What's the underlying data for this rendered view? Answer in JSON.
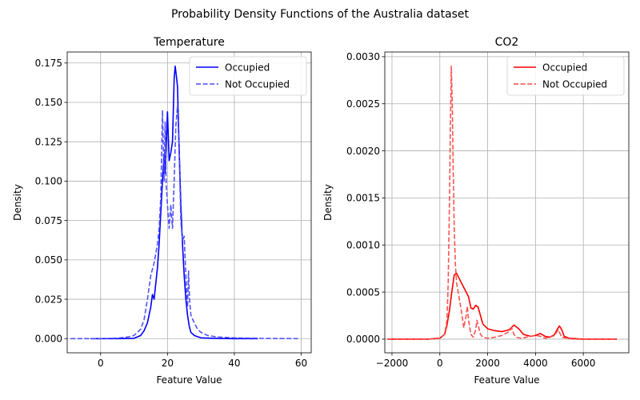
{
  "figure": {
    "suptitle": "Probability Density Functions of the Australia dataset"
  },
  "chart_data": [
    {
      "type": "line",
      "title": "Temperature",
      "xlabel": "Feature Value",
      "ylabel": "Density",
      "xlim": [
        -10,
        63
      ],
      "ylim": [
        -0.009,
        0.182
      ],
      "xticks": [
        0,
        20,
        40,
        60
      ],
      "yticks": [
        0.0,
        0.025,
        0.05,
        0.075,
        0.1,
        0.125,
        0.15,
        0.175
      ],
      "ytick_labels": [
        "0.000",
        "0.025",
        "0.050",
        "0.075",
        "0.100",
        "0.125",
        "0.150",
        "0.175"
      ],
      "xtick_labels": [
        "0",
        "20",
        "40",
        "60"
      ],
      "grid": true,
      "legend": "top-right",
      "series": [
        {
          "name": "Occupied",
          "color": "#0000ff",
          "dash": "solid",
          "x": [
            -3,
            5,
            10,
            12,
            13,
            14,
            15,
            15.5,
            16,
            16.5,
            17,
            17.5,
            18,
            18.5,
            19,
            19.3,
            19.6,
            20,
            20.5,
            21,
            21.5,
            22,
            22.3,
            22.6,
            23,
            23.5,
            24,
            24.5,
            25,
            25.5,
            26,
            26.5,
            27,
            28,
            30,
            35,
            40,
            47
          ],
          "y": [
            0,
            0,
            0.0002,
            0.002,
            0.005,
            0.01,
            0.02,
            0.028,
            0.025,
            0.035,
            0.045,
            0.06,
            0.08,
            0.1,
            0.117,
            0.105,
            0.12,
            0.144,
            0.113,
            0.118,
            0.125,
            0.165,
            0.173,
            0.168,
            0.16,
            0.12,
            0.085,
            0.06,
            0.04,
            0.025,
            0.015,
            0.008,
            0.004,
            0.002,
            0.0005,
            0.0001,
            0,
            0
          ]
        },
        {
          "name": "Not Occupied",
          "color": "#4a4aff",
          "dash": "dashed",
          "x": [
            -9,
            0,
            5,
            8,
            10,
            12,
            13,
            14,
            15,
            16,
            17,
            17.5,
            18,
            18.5,
            19,
            19.3,
            19.6,
            20,
            20.5,
            21,
            21.5,
            22,
            22.5,
            23,
            23.5,
            24,
            24.5,
            25,
            25.5,
            26,
            26.3,
            26.6,
            27,
            28,
            29,
            30,
            32,
            35,
            40,
            50,
            59
          ],
          "y": [
            0,
            0,
            0.0003,
            0.001,
            0.002,
            0.006,
            0.012,
            0.025,
            0.04,
            0.048,
            0.06,
            0.07,
            0.09,
            0.145,
            0.1,
            0.138,
            0.098,
            0.085,
            0.07,
            0.085,
            0.07,
            0.1,
            0.135,
            0.148,
            0.12,
            0.075,
            0.062,
            0.065,
            0.04,
            0.02,
            0.043,
            0.025,
            0.015,
            0.01,
            0.006,
            0.004,
            0.002,
            0.001,
            0.0005,
            0.0001,
            0
          ]
        }
      ]
    },
    {
      "type": "line",
      "title": "CO2",
      "xlabel": "Feature Value",
      "ylabel": "Density",
      "xlim": [
        -2300,
        7900
      ],
      "ylim": [
        -0.000145,
        0.00305
      ],
      "xticks": [
        -2000,
        0,
        2000,
        4000,
        6000
      ],
      "xtick_labels": [
        "−2000",
        "0",
        "2000",
        "4000",
        "6000"
      ],
      "yticks": [
        0.0,
        0.0005,
        0.001,
        0.0015,
        0.002,
        0.0025,
        0.003
      ],
      "ytick_labels": [
        "0.0000",
        "0.0005",
        "0.0010",
        "0.0015",
        "0.0020",
        "0.0025",
        "0.0030"
      ],
      "grid": true,
      "legend": "top-right",
      "series": [
        {
          "name": "Occupied",
          "color": "#ff0000",
          "dash": "solid",
          "x": [
            -2200,
            -500,
            0,
            200,
            300,
            400,
            500,
            600,
            700,
            800,
            900,
            1000,
            1100,
            1200,
            1300,
            1400,
            1500,
            1600,
            1700,
            1800,
            2000,
            2300,
            2600,
            2900,
            3100,
            3300,
            3500,
            3800,
            4000,
            4200,
            4400,
            4600,
            4800,
            4900,
            5000,
            5100,
            5200,
            5400,
            6000,
            7000,
            7400
          ],
          "y": [
            0,
            0,
            1e-05,
            5e-05,
            0.00015,
            0.0003,
            0.0005,
            0.00068,
            0.0007,
            0.00065,
            0.0006,
            0.00055,
            0.0005,
            0.00045,
            0.00033,
            0.00032,
            0.00036,
            0.00034,
            0.00025,
            0.00016,
            0.00011,
            9e-05,
            8e-05,
            0.0001,
            0.00015,
            0.00011,
            5e-05,
            3e-05,
            4e-05,
            6e-05,
            3e-05,
            2e-05,
            5e-05,
            0.0001,
            0.00014,
            0.0001,
            3e-05,
            1e-05,
            0,
            0,
            0
          ]
        },
        {
          "name": "Not Occupied",
          "color": "#ff4a4a",
          "dash": "dashed",
          "x": [
            -2200,
            -500,
            0,
            200,
            300,
            350,
            400,
            450,
            480,
            520,
            560,
            600,
            650,
            700,
            800,
            900,
            1000,
            1100,
            1150,
            1200,
            1300,
            1400,
            1500,
            1550,
            1600,
            1700,
            1800,
            2000,
            2300,
            2600,
            2900,
            3000,
            3100,
            3200,
            3400,
            3600,
            4000,
            4200,
            4400,
            4600,
            4800,
            4950,
            5100,
            5300,
            5600,
            6000,
            7000,
            7400
          ],
          "y": [
            0,
            0,
            1e-05,
            5e-05,
            0.0002,
            0.0006,
            0.0014,
            0.0024,
            0.0029,
            0.0025,
            0.0018,
            0.0012,
            0.0008,
            0.0006,
            0.00045,
            0.0003,
            0.00012,
            0.00025,
            0.00035,
            0.0002,
            5e-05,
            2e-05,
            0.0001,
            0.0002,
            0.00015,
            5e-05,
            2e-05,
            1e-05,
            2e-05,
            4e-05,
            8e-05,
            0.00012,
            5e-05,
            2e-05,
            1e-05,
            2e-05,
            4e-05,
            3e-05,
            1e-05,
            2e-05,
            4e-05,
            0.0001,
            2e-05,
            1e-05,
            0,
            0,
            0,
            0
          ]
        }
      ]
    }
  ]
}
